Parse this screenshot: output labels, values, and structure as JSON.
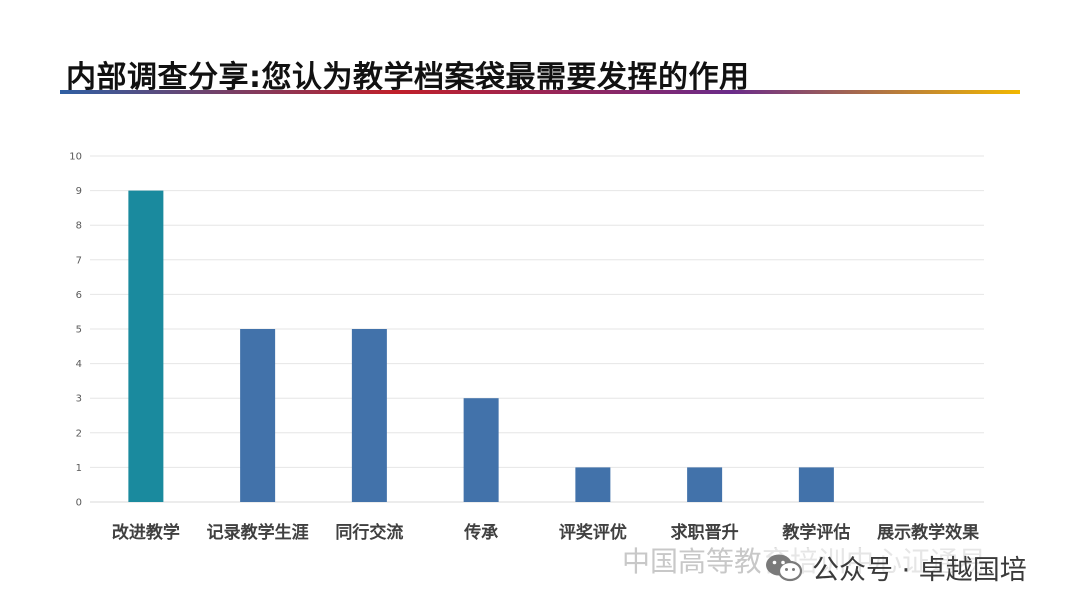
{
  "slide": {
    "title": "内部调查分享:您认为教学档案袋最需要发挥的作用"
  },
  "colors": {
    "title_rule": [
      "#2f5fa3",
      "#c0202a",
      "#6b2c8a",
      "#f2b800"
    ],
    "bar": "#4272aa",
    "bar_highlight": "#1a8a9e",
    "grid": "#e6e6e6",
    "tick_label": "#595959",
    "category_label": "#404040"
  },
  "chart_data": {
    "type": "bar",
    "categories": [
      "改进教学",
      "记录教学生涯",
      "同行交流",
      "传承",
      "评奖评优",
      "求职晋升",
      "教学评估",
      "展示教学效果"
    ],
    "values": [
      9,
      5,
      5,
      3,
      1,
      1,
      1,
      0
    ],
    "highlight_index": 0,
    "ylim": [
      0,
      10
    ],
    "yticks": [
      0,
      1,
      2,
      3,
      4,
      5,
      6,
      7,
      8,
      9,
      10
    ],
    "grid": true,
    "title": "",
    "xlabel": "",
    "ylabel": ""
  },
  "watermark": {
    "text": "中国高等教育培训中心证通易",
    "icon": "wechat-icon",
    "account": "公众号 · 卓越国培"
  }
}
